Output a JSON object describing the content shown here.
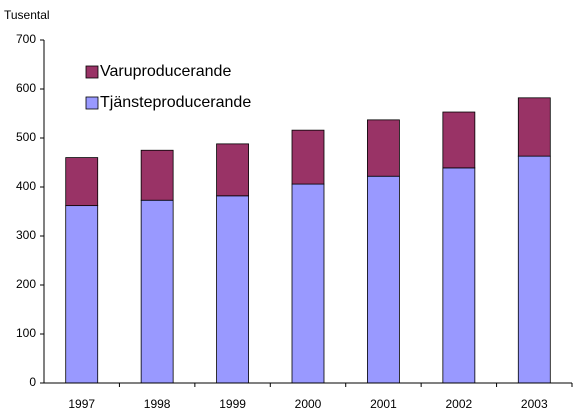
{
  "chart_data": {
    "type": "stacked_bar",
    "y_label": "Tusental",
    "categories": [
      "1997",
      "1998",
      "1999",
      "2000",
      "2001",
      "2002",
      "2003"
    ],
    "series": [
      {
        "name": "Tjänsteproducerande",
        "color": "#9999ff",
        "values": [
          362,
          373,
          382,
          406,
          422,
          439,
          463
        ]
      },
      {
        "name": "Varuproducerande",
        "color": "#993366",
        "values": [
          98,
          102,
          106,
          110,
          115,
          114,
          119
        ]
      }
    ],
    "ylim": [
      0,
      700
    ],
    "yticks": [
      0,
      100,
      200,
      300,
      400,
      500,
      600,
      700
    ],
    "grid": false
  }
}
